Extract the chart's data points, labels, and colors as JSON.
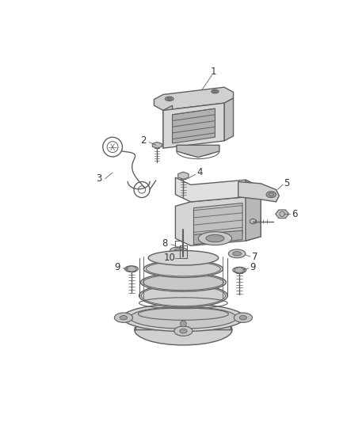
{
  "background_color": "#ffffff",
  "line_color": "#606060",
  "fill_color": "#e8e8e8",
  "figsize": [
    4.38,
    5.33
  ],
  "dpi": 100
}
